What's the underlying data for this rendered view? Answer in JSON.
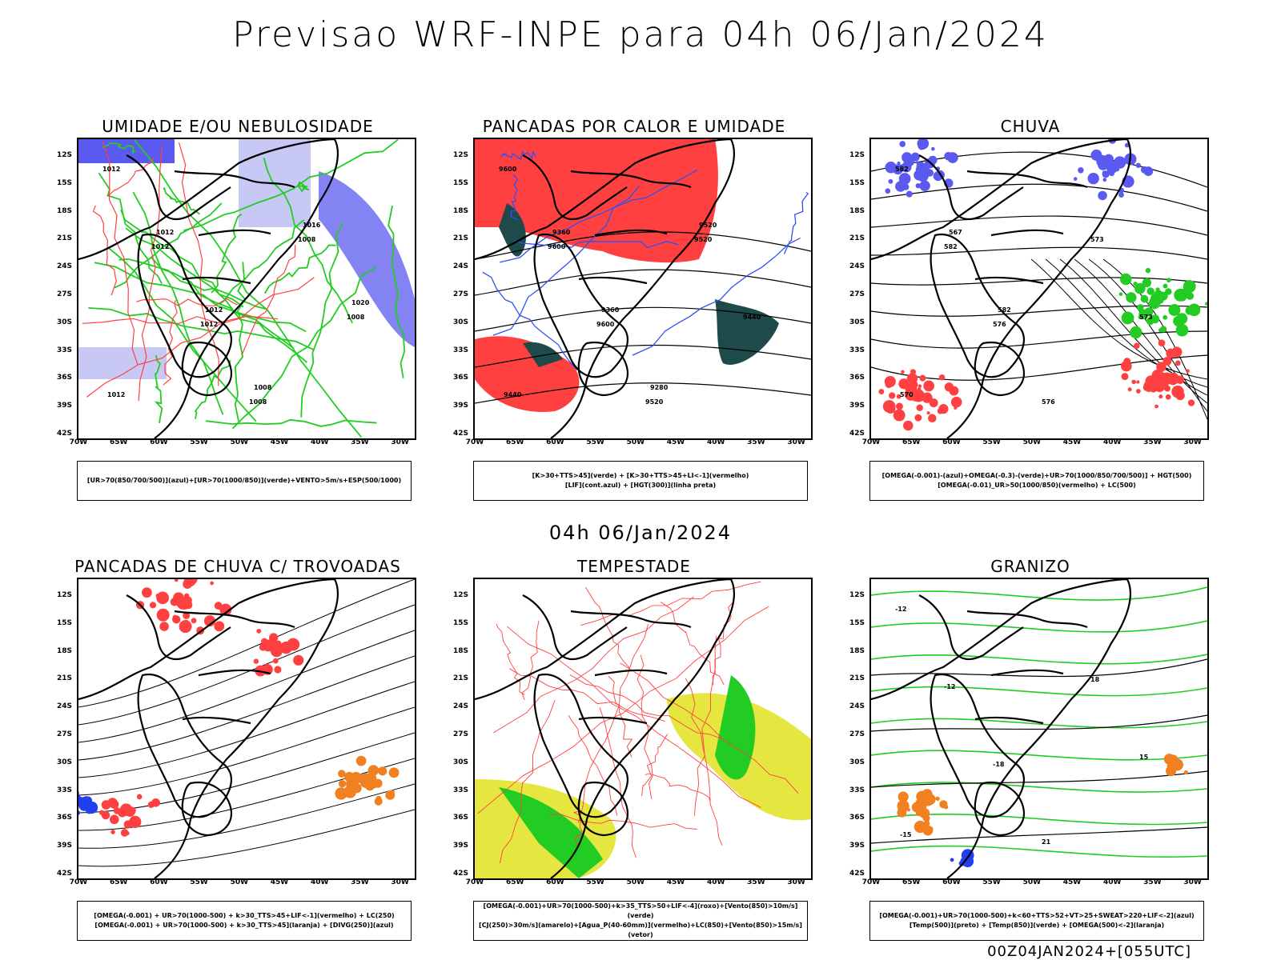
{
  "header": {
    "title": "Previsao WRF-INPE  para 04h 06/Jan/2024"
  },
  "mid_time": "04h 06/Jan/2024",
  "footer": "00Z04JAN2024+[055UTC]",
  "lat_ticks": [
    "12S",
    "15S",
    "18S",
    "21S",
    "24S",
    "27S",
    "30S",
    "33S",
    "36S",
    "39S",
    "42S"
  ],
  "lon_ticks": [
    "70W",
    "65W",
    "60W",
    "55W",
    "50W",
    "45W",
    "40W",
    "35W",
    "30W"
  ],
  "colors": {
    "humidity_blue": "#5a5af0",
    "light_blue": "#c8c8f5",
    "green": "#22cc22",
    "red": "#ff4040",
    "dark_teal": "#1f4a4a",
    "yellow": "#e6e640",
    "orange": "#f08020",
    "contour": "#000000"
  },
  "panels": [
    {
      "id": "umidade",
      "title": "UMIDADE E/OU NEBULOSIDADE",
      "legend": [
        "[UR>70(850/700/500)](azul)+[UR>70(1000/850)](verde)+VENTO>5m/s+ESP(500/1000)"
      ],
      "contour_labels": [
        "1012",
        "1012",
        "1012",
        "1008",
        "1008",
        "1008",
        "1012",
        "1012",
        "1012",
        "1008",
        "1016",
        "1020"
      ]
    },
    {
      "id": "pancadas-calor",
      "title": "PANCADAS POR CALOR E UMIDADE",
      "legend": [
        "[K>30+TTS>45](verde) + [K>30+TTS>45+LI<-1](vermelho)",
        "[LIF](cont.azul) + [HGT(300)](linha preta)"
      ],
      "contour_labels": [
        "9600",
        "9600",
        "9600",
        "9520",
        "9520",
        "9440",
        "9440",
        "9360",
        "9360",
        "9280",
        "9520"
      ]
    },
    {
      "id": "chuva",
      "title": "CHUVA",
      "legend": [
        "[OMEGA(-0.001)-(azul)+OMEGA(-0.3)-(verde)+UR>70(1000/850/700/500)] + HGT(500)",
        "[OMEGA(-0.01)_UR>50(1000/850)(vermelho) + LC(500)"
      ],
      "contour_labels": [
        "582",
        "582",
        "576",
        "576",
        "573",
        "573",
        "570",
        "567",
        "582"
      ]
    },
    {
      "id": "pancadas-trovoadas",
      "title": "PANCADAS DE CHUVA C/ TROVOADAS",
      "legend": [
        "[OMEGA(-0.001) + UR>70(1000-500) + k>30_TTS>45+LIF<-1](vermelho) + LC(250)",
        "[OMEGA(-0.001) + UR>70(1000-500) + k>30_TTS>45](laranja) + [DIVG(250)](azul)"
      ],
      "contour_labels": []
    },
    {
      "id": "tempestade",
      "title": "TEMPESTADE",
      "legend": [
        "[OMEGA(-0.001)+UR>70(1000-500)+k>35_TTS>50+LIF<-4](roxo)+[Vento(850)>10m/s](verde)",
        "[CJ(250)>30m/s](amarelo)+[Agua_P(40-60mm)](vermelho)+LC(850)+[Vento(850)>15m/s](vetor)"
      ],
      "contour_labels": []
    },
    {
      "id": "granizo",
      "title": "GRANIZO",
      "legend": [
        "[OMEGA(-0.001)+UR>70(1000-500)+k<60+TTS>52+VT>25+SWEAT>220+LIF<-2](azul)",
        "[Temp(500)](preto) + [Temp(850)](verde) + [OMEGA(500)<-2](laranja)"
      ],
      "contour_labels": [
        "-12",
        "-12",
        "-18",
        "21",
        "18",
        "15",
        "-15"
      ]
    }
  ]
}
